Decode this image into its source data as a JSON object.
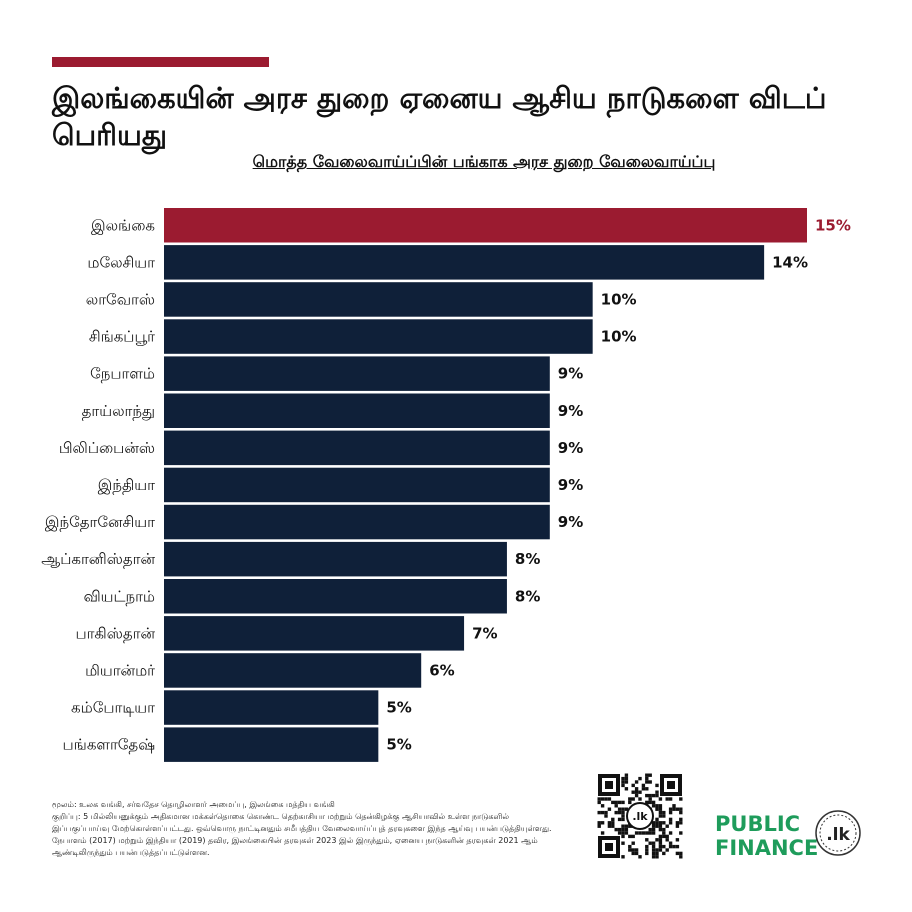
{
  "header": {
    "title": "இலங்கையின் அரச துறை ஏனைய ஆசிய நாடுகளை விடப் பெரியது",
    "subtitle": "மொத்த வேலைவாய்ப்பின் பங்காக அரச துறை வேலைவாய்ப்பு"
  },
  "colors": {
    "accent": "#9b1b30",
    "bar": "#0f2039",
    "highlight": "#9b1b30",
    "brand_green": "#1e9c5b"
  },
  "chart_data": {
    "type": "bar",
    "orientation": "horizontal",
    "categories": [
      "இலங்கை",
      "மலேசியா",
      "லாவோஸ்",
      "சிங்கப்பூர்",
      "நேபாளம்",
      "தாய்லாந்து",
      "பிலிப்பைன்ஸ்",
      "இந்தியா",
      "இந்தோனேசியா",
      "ஆப்கானிஸ்தான்",
      "வியட்நாம்",
      "பாகிஸ்தான்",
      "மியான்மர்",
      "கம்போடியா",
      "பங்களாதேஷ்"
    ],
    "values": [
      15,
      14,
      10,
      10,
      9,
      9,
      9,
      9,
      9,
      8,
      8,
      7,
      6,
      5,
      5
    ],
    "value_labels": [
      "15%",
      "14%",
      "10%",
      "10%",
      "9%",
      "9%",
      "9%",
      "9%",
      "9%",
      "8%",
      "8%",
      "7%",
      "6%",
      "5%",
      "5%"
    ],
    "highlight_index": 0,
    "xlim": [
      0,
      15
    ],
    "grid": false,
    "unit": "%"
  },
  "footer": {
    "source": "மூலம்: உலக வங்கி, சர்வதேச தொழிலாளர் அமைப்பு, இலங்கை மத்திய வங்கி",
    "note": "குறிப்பு: 5 மில்லியனுக்கும் அதிகமான மக்கள்தொகை கொண்ட தெற்காசியா மற்றும் தென்கிழக்கு ஆசியாவில் உள்ள நாடுகளில் இப்பகுப்பாய்வு மேற்கொள்ளப்பட்டது. ஒவ்வொரு நாட்டினதும் சமீபத்திய வேலைவாய்ப்புத் தரவுகளை இந்த ஆய்வு பயன்படுத்தியுள்ளது. நேபாளம் (2017) மற்றும் இந்தியா (2019) தவிர, இலங்கையின் தரவுகள் 2023 இல் இருந்தும், ஏனைய நாடுகளின் தரவுகள் 2021 ஆம் ஆண்டிலிருந்தும் பயன்படுத்தப்பட்டுள்ளன."
  },
  "brand": {
    "line1": "PUBLIC",
    "line2": "FINANCE",
    "seal_text": ".lk",
    "qr_center_text": ".lk",
    "icon": "qr-code-icon"
  }
}
